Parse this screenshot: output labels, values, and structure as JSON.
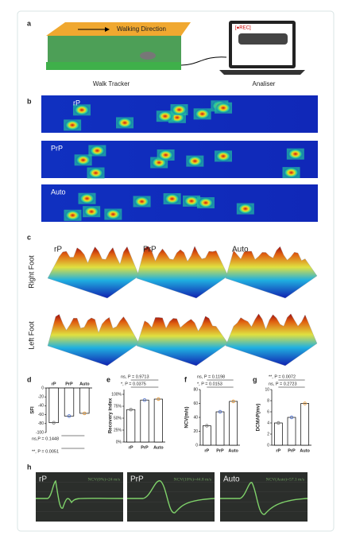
{
  "figure": {
    "a": {
      "letter": "a",
      "direction": "Walking Direction",
      "rec": "[●REC]",
      "left_label": "Walk Tracker",
      "right_label": "Analiser"
    },
    "b": {
      "letter": "b",
      "rows": [
        "rP",
        "PrP",
        "Auto"
      ]
    },
    "c": {
      "letter": "c",
      "columns": [
        "rP",
        "PrP",
        "Auto"
      ],
      "rows": [
        "Right Foot",
        "Left Foot"
      ]
    },
    "h": {
      "letter": "h",
      "panels": [
        {
          "label": "rP",
          "note": "NCV(0%)=24 m/s"
        },
        {
          "label": "PrP",
          "note": "NCV(10%)=44.8 m/s"
        },
        {
          "label": "Auto",
          "note": "NCV(Auto)=57.1 m/s"
        }
      ]
    }
  },
  "chart_data": [
    {
      "type": "bar",
      "letter": "d",
      "ylabel": "SFI",
      "categories": [
        "rP",
        "PrP",
        "Auto"
      ],
      "values": [
        -78,
        -63,
        -57
      ],
      "colors": [
        "#777777",
        "#4a6fd0",
        "#e8962e"
      ],
      "ylim": [
        -100,
        0
      ],
      "yticks": [
        -100,
        -80,
        -60,
        -40,
        -20,
        0
      ],
      "annotations": [
        "ns,P = 0.1448",
        "**, P = 0.0051"
      ]
    },
    {
      "type": "bar",
      "letter": "e",
      "ylabel": "Recovery index",
      "categories": [
        "rP",
        "PrP",
        "Auto"
      ],
      "values": [
        68,
        88,
        90
      ],
      "colors": [
        "#777777",
        "#4a6fd0",
        "#e8962e"
      ],
      "ylim": [
        0,
        110
      ],
      "yticks": [
        {
          "value": 0,
          "label": "0%"
        },
        {
          "value": 25,
          "label": "25%"
        },
        {
          "value": 50,
          "label": "50%"
        },
        {
          "value": 75,
          "label": "75%"
        },
        {
          "value": 100,
          "label": "100%"
        }
      ],
      "annotations": [
        "ns, P = 0.9713",
        "*, P = 0.0375"
      ]
    },
    {
      "type": "bar",
      "letter": "f",
      "ylabel": "NCV(m/s)",
      "categories": [
        "rP",
        "PrP",
        "Auto"
      ],
      "values": [
        28,
        48,
        63
      ],
      "colors": [
        "#777777",
        "#4a6fd0",
        "#e8962e"
      ],
      "ylim": [
        0,
        80
      ],
      "yticks": [
        0,
        20,
        40,
        60,
        80
      ],
      "annotations": [
        "ns, P = 0.1198",
        "*, P = 0.0153"
      ]
    },
    {
      "type": "bar",
      "letter": "g",
      "ylabel": "DCMAP(mv)",
      "categories": [
        "rP",
        "PrP",
        "Auto"
      ],
      "values": [
        4,
        5,
        7.5
      ],
      "colors": [
        "#777777",
        "#4a6fd0",
        "#e8962e"
      ],
      "ylim": [
        0,
        10
      ],
      "yticks": [
        0,
        2,
        4,
        6,
        8,
        10
      ],
      "annotations": [
        "**, P = 0.0072",
        "ns, P = 0.2723"
      ]
    }
  ]
}
